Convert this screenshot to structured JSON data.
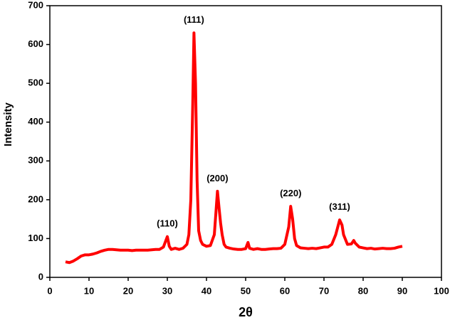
{
  "chart_data": {
    "type": "line",
    "x_label": "2θ",
    "y_label": "Intensity",
    "xlim": [
      0,
      100
    ],
    "xticks": [
      0,
      10,
      20,
      30,
      40,
      50,
      60,
      70,
      80,
      90,
      100
    ],
    "ylim": [
      0,
      700
    ],
    "yticks": [
      0,
      100,
      200,
      300,
      400,
      500,
      600,
      700
    ],
    "grid": false,
    "series": [
      {
        "color": "#ff0000",
        "x": [
          4,
          5,
          6,
          7,
          8,
          9,
          10,
          11,
          12,
          13,
          14,
          15,
          16,
          17,
          18,
          19,
          20,
          21,
          22,
          23,
          24,
          25,
          26,
          27,
          28,
          29,
          30,
          30.5,
          31,
          32,
          33,
          34,
          35,
          35.5,
          36,
          36.5,
          36.8,
          37.2,
          37.6,
          38,
          38.5,
          39,
          40,
          41,
          42,
          42.5,
          42.8,
          43.2,
          43.6,
          44,
          44.5,
          45,
          46,
          47,
          48,
          49,
          50,
          50.6,
          51,
          52,
          53,
          54,
          55,
          56,
          57,
          58,
          59,
          60,
          61,
          61.5,
          62,
          62.5,
          63,
          64,
          65,
          66,
          67,
          68,
          69,
          70,
          71,
          72,
          73,
          74,
          74.6,
          75,
          76,
          77,
          77.6,
          78,
          79,
          80,
          81,
          82,
          83,
          84,
          85,
          86,
          87,
          88,
          89,
          90
        ],
        "values": [
          40,
          38,
          42,
          48,
          55,
          58,
          58,
          60,
          63,
          67,
          70,
          72,
          72,
          71,
          70,
          70,
          70,
          69,
          70,
          70,
          70,
          70,
          71,
          72,
          72,
          78,
          105,
          80,
          72,
          75,
          72,
          75,
          85,
          110,
          200,
          450,
          630,
          500,
          250,
          120,
          95,
          85,
          80,
          82,
          110,
          180,
          222,
          180,
          140,
          110,
          85,
          78,
          75,
          73,
          72,
          72,
          74,
          90,
          75,
          72,
          74,
          72,
          72,
          73,
          74,
          74,
          75,
          85,
          130,
          183,
          150,
          100,
          82,
          76,
          75,
          74,
          75,
          74,
          76,
          78,
          78,
          85,
          110,
          148,
          135,
          110,
          85,
          86,
          95,
          88,
          78,
          76,
          74,
          75,
          73,
          74,
          75,
          74,
          74,
          75,
          78,
          80
        ]
      }
    ],
    "annotations": [
      {
        "text": "(110)",
        "x": 30,
        "y": 105
      },
      {
        "text": "(111)",
        "x": 36.8,
        "y": 630
      },
      {
        "text": "(200)",
        "x": 42.8,
        "y": 222
      },
      {
        "text": "(220)",
        "x": 61.5,
        "y": 183
      },
      {
        "text": "(311)",
        "x": 74,
        "y": 148
      }
    ]
  }
}
